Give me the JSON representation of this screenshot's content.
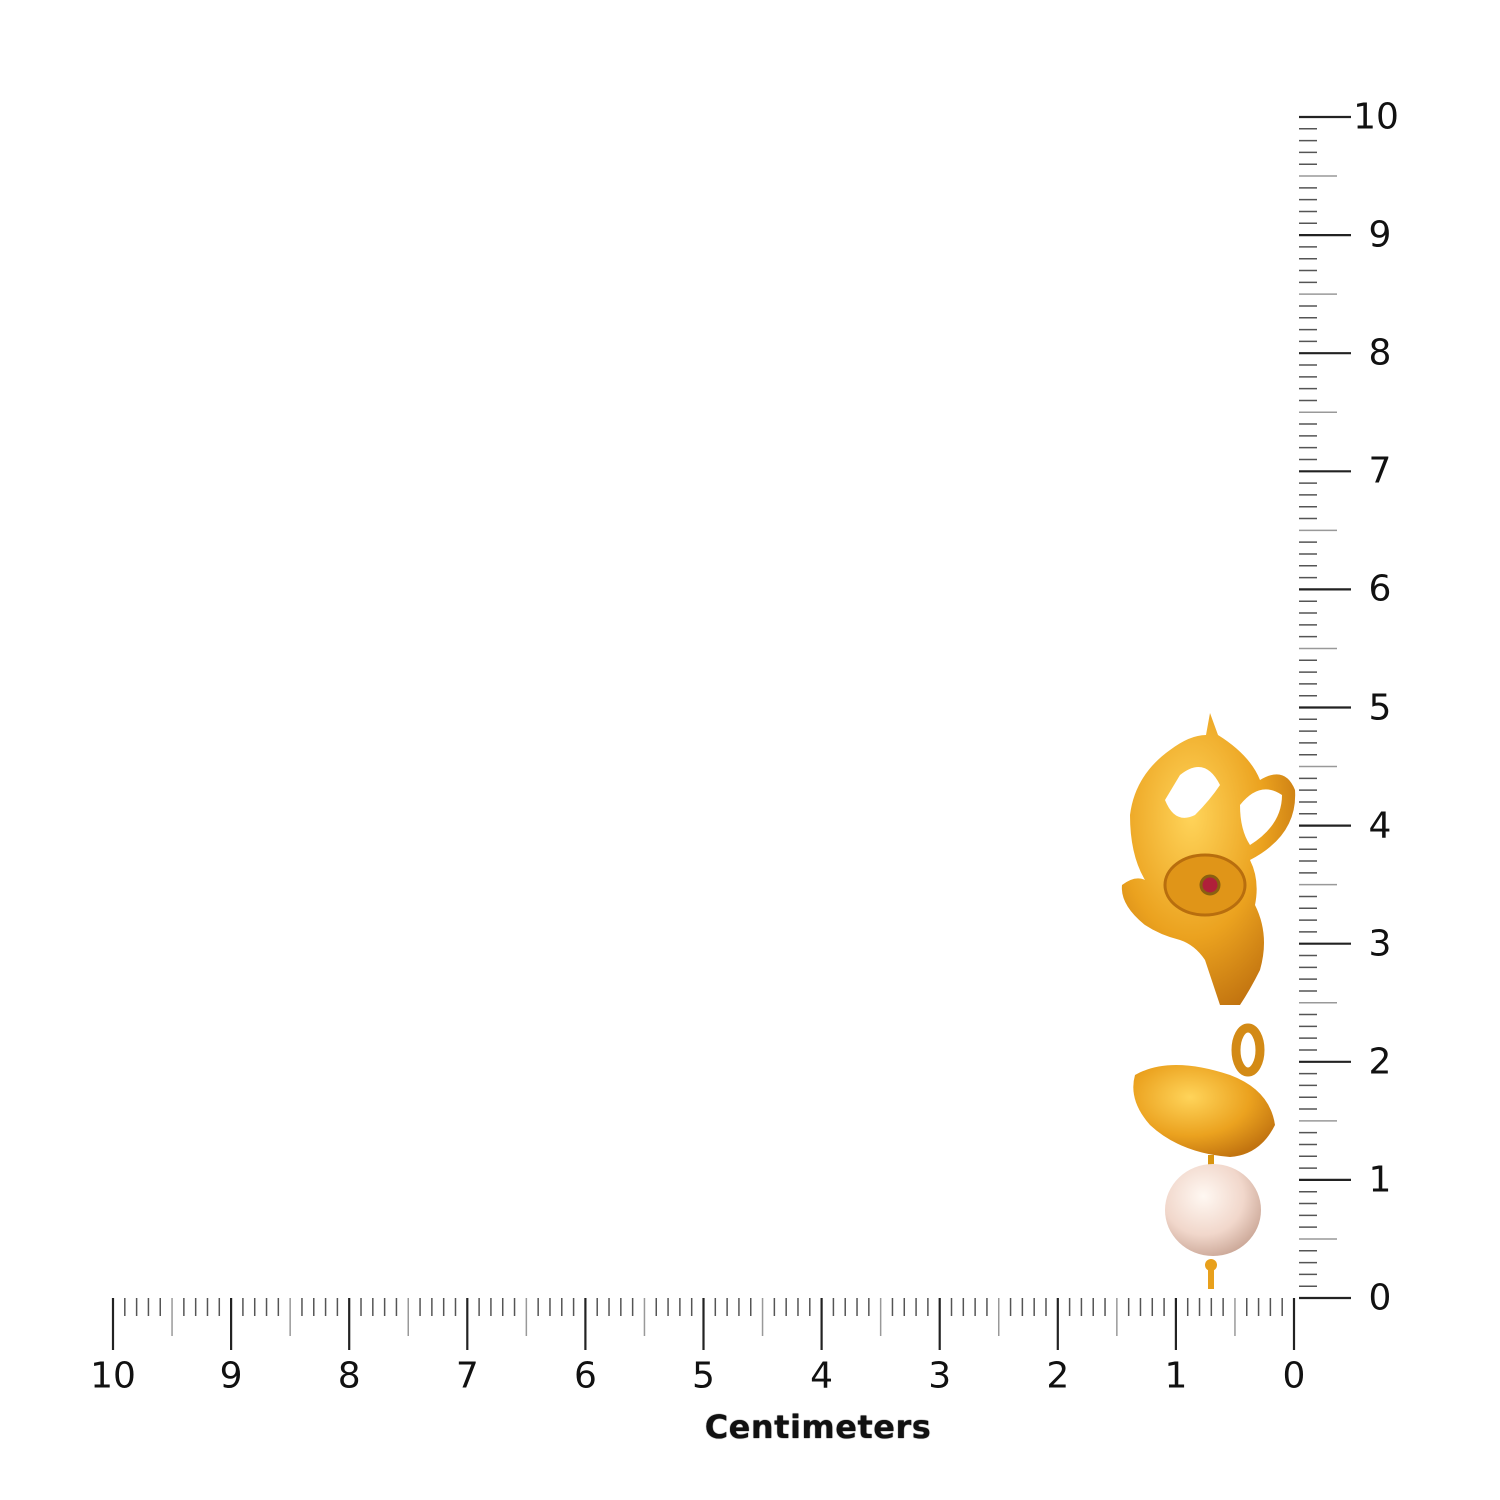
{
  "ruler": {
    "unit_label": "Centimeters",
    "horizontal_labels": [
      "10",
      "9",
      "8",
      "7",
      "6",
      "5",
      "4",
      "3",
      "2",
      "1",
      "0"
    ],
    "vertical_labels": [
      "0",
      "1",
      "2",
      "3",
      "4",
      "5",
      "6",
      "7",
      "8",
      "9",
      "10"
    ],
    "max_cm": 10,
    "subdivisions_per_cm": 10
  },
  "product": {
    "name": "gold peacock drop earring with pearl",
    "height_cm": 4.9,
    "width_cm": 1.5,
    "colors": {
      "gold": "#E9A21E",
      "gold_shadow": "#C9790E",
      "stone": "#B0203A",
      "pearl": "#F3DCD2"
    }
  }
}
